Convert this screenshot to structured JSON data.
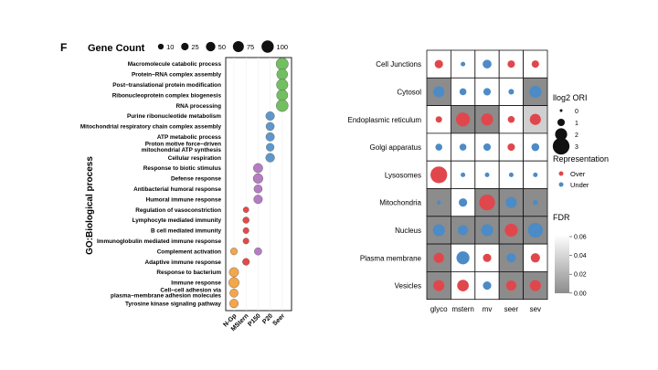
{
  "panel_letter": "F",
  "chart_data": [
    {
      "type": "scatter",
      "title": "",
      "xlabel": "",
      "ylabel": "GO:Biological process",
      "size_legend": {
        "title": "Gene Count",
        "values": [
          10,
          25,
          50,
          75,
          100
        ]
      },
      "categories_x": [
        "N-Gp",
        "MStern",
        "P150",
        "P20",
        "Seer"
      ],
      "categories_y": [
        "Macromolecule catabolic process",
        "Protein−RNA complex assembly",
        "Post−translational protein modification",
        "Ribonucleoprotein complex biogenesis",
        "RNA processing",
        "Purine ribonucleotide metabolism",
        "Mitochondrial respiratory chain complex assembly",
        "ATP metabolic process",
        "Proton motive force−driven mitochondrial ATP synthesis",
        "Cellular respiration",
        "Response to biotic stimulus",
        "Defense response",
        "Antibacterial humoral response",
        "Humoral immune response",
        "Regulation of vasoconstriction",
        "Lymphocyte mediated immunity",
        "B cell mediated immunity",
        "Immunoglobulin mediated immune response",
        "Complement activation",
        "Adaptive immune response",
        "Response to bacterium",
        "Immune response",
        "Cell−cell adhesion via plasma−membrane adhesion molecules",
        "Tyrosine kinase signaling pathway"
      ],
      "points": [
        {
          "x": "Seer",
          "y": "Macromolecule catabolic process",
          "count": 100
        },
        {
          "x": "Seer",
          "y": "Protein−RNA complex assembly",
          "count": 75
        },
        {
          "x": "Seer",
          "y": "Post−translational protein modification",
          "count": 85
        },
        {
          "x": "Seer",
          "y": "Ribonucleoprotein complex biogenesis",
          "count": 80
        },
        {
          "x": "Seer",
          "y": "RNA processing",
          "count": 95
        },
        {
          "x": "P20",
          "y": "Purine ribonucleotide metabolism",
          "count": 40
        },
        {
          "x": "P20",
          "y": "Mitochondrial respiratory chain complex assembly",
          "count": 35
        },
        {
          "x": "P20",
          "y": "ATP metabolic process",
          "count": 38
        },
        {
          "x": "P20",
          "y": "Proton motive force−driven mitochondrial ATP synthesis",
          "count": 30
        },
        {
          "x": "P20",
          "y": "Cellular respiration",
          "count": 42
        },
        {
          "x": "P150",
          "y": "Response to biotic stimulus",
          "count": 50
        },
        {
          "x": "P150",
          "y": "Defense response",
          "count": 55
        },
        {
          "x": "P150",
          "y": "Antibacterial humoral response",
          "count": 35
        },
        {
          "x": "P150",
          "y": "Humoral immune response",
          "count": 40
        },
        {
          "x": "P150",
          "y": "Complement activation",
          "count": 25
        },
        {
          "x": "MStern",
          "y": "Regulation of vasoconstriction",
          "count": 10
        },
        {
          "x": "MStern",
          "y": "Lymphocyte mediated immunity",
          "count": 15
        },
        {
          "x": "MStern",
          "y": "B cell mediated immunity",
          "count": 12
        },
        {
          "x": "MStern",
          "y": "Immunoglobulin mediated immune response",
          "count": 12
        },
        {
          "x": "MStern",
          "y": "Adaptive immune response",
          "count": 20
        },
        {
          "x": "N-Gp",
          "y": "Complement activation",
          "count": 20
        },
        {
          "x": "N-Gp",
          "y": "Response to bacterium",
          "count": 50
        },
        {
          "x": "N-Gp",
          "y": "Immune response",
          "count": 65
        },
        {
          "x": "N-Gp",
          "y": "Cell−cell adhesion via plasma−membrane adhesion molecules",
          "count": 35
        },
        {
          "x": "N-Gp",
          "y": "Tyrosine kinase signaling pathway",
          "count": 40
        }
      ],
      "colors": {
        "N-Gp": "#F3A64A",
        "MStern": "#E34A48",
        "P150": "#B47DC2",
        "P20": "#5E97CC",
        "Seer": "#72BE60"
      }
    },
    {
      "type": "heatmap",
      "title": "",
      "xlabel": "",
      "ylabel": "",
      "categories_x": [
        "glyco",
        "mstern",
        "mv",
        "seer",
        "sev"
      ],
      "categories_y": [
        "Cell Junctions",
        "Cytosol",
        "Endoplasmic reticulum",
        "Golgi apparatus",
        "Lysosomes",
        "Mitochondria",
        "Nucleus",
        "Plasma membrane",
        "Vesicles"
      ],
      "size_legend": {
        "title": "llog2 ORI",
        "values": [
          0,
          1,
          2,
          3
        ]
      },
      "color_legend": {
        "title": "Representation",
        "values": [
          "Over",
          "Under"
        ]
      },
      "fdr_legend": {
        "title": "FDR",
        "ticks": [
          "0.06",
          "0.04",
          "0.02",
          "0.00"
        ],
        "range": [
          0,
          0.06
        ]
      },
      "rep_colors": {
        "Over": "#E0474C",
        "Under": "#4C8BC6"
      },
      "cells": [
        [
          {
            "ori": 1.2,
            "rep": "Over",
            "fdr": 0.06
          },
          {
            "ori": 0.4,
            "rep": "Under",
            "fdr": 0.06
          },
          {
            "ori": 1.3,
            "rep": "Under",
            "fdr": 0.06
          },
          {
            "ori": 1.0,
            "rep": "Over",
            "fdr": 0.06
          },
          {
            "ori": 1.0,
            "rep": "Over",
            "fdr": 0.06
          }
        ],
        [
          {
            "ori": 1.8,
            "rep": "Under",
            "fdr": 0.0
          },
          {
            "ori": 0.9,
            "rep": "Under",
            "fdr": 0.06
          },
          {
            "ori": 1.0,
            "rep": "Under",
            "fdr": 0.06
          },
          {
            "ori": 0.6,
            "rep": "Under",
            "fdr": 0.06
          },
          {
            "ori": 2.0,
            "rep": "Under",
            "fdr": 0.0
          }
        ],
        [
          {
            "ori": 0.8,
            "rep": "Over",
            "fdr": 0.06
          },
          {
            "ori": 2.4,
            "rep": "Over",
            "fdr": 0.0
          },
          {
            "ori": 2.0,
            "rep": "Over",
            "fdr": 0.0
          },
          {
            "ori": 0.9,
            "rep": "Over",
            "fdr": 0.06
          },
          {
            "ori": 1.8,
            "rep": "Over",
            "fdr": 0.035
          }
        ],
        [
          {
            "ori": 0.9,
            "rep": "Under",
            "fdr": 0.06
          },
          {
            "ori": 0.9,
            "rep": "Under",
            "fdr": 0.06
          },
          {
            "ori": 1.0,
            "rep": "Under",
            "fdr": 0.06
          },
          {
            "ori": 1.0,
            "rep": "Over",
            "fdr": 0.06
          },
          {
            "ori": 1.1,
            "rep": "Under",
            "fdr": 0.06
          }
        ],
        [
          {
            "ori": 3.0,
            "rep": "Over",
            "fdr": 0.06
          },
          {
            "ori": 0.4,
            "rep": "Under",
            "fdr": 0.06
          },
          {
            "ori": 0.4,
            "rep": "Under",
            "fdr": 0.06
          },
          {
            "ori": 0.4,
            "rep": "Under",
            "fdr": 0.06
          },
          {
            "ori": 0.4,
            "rep": "Under",
            "fdr": 0.06
          }
        ],
        [
          {
            "ori": 0.3,
            "rep": "Under",
            "fdr": 0.0
          },
          {
            "ori": 1.2,
            "rep": "Under",
            "fdr": 0.06
          },
          {
            "ori": 2.8,
            "rep": "Over",
            "fdr": 0.0
          },
          {
            "ori": 1.8,
            "rep": "Under",
            "fdr": 0.0
          },
          {
            "ori": 0.5,
            "rep": "Under",
            "fdr": 0.0
          }
        ],
        [
          {
            "ori": 2.0,
            "rep": "Under",
            "fdr": 0.0
          },
          {
            "ori": 1.6,
            "rep": "Under",
            "fdr": 0.0
          },
          {
            "ori": 2.0,
            "rep": "Under",
            "fdr": 0.0
          },
          {
            "ori": 2.2,
            "rep": "Over",
            "fdr": 0.0
          },
          {
            "ori": 2.6,
            "rep": "Under",
            "fdr": 0.0
          }
        ],
        [
          {
            "ori": 1.6,
            "rep": "Over",
            "fdr": 0.0
          },
          {
            "ori": 2.2,
            "rep": "Under",
            "fdr": 0.06
          },
          {
            "ori": 1.2,
            "rep": "Over",
            "fdr": 0.06
          },
          {
            "ori": 1.4,
            "rep": "Under",
            "fdr": 0.0
          },
          {
            "ori": 1.4,
            "rep": "Over",
            "fdr": 0.06
          }
        ],
        [
          {
            "ori": 1.8,
            "rep": "Over",
            "fdr": 0.0
          },
          {
            "ori": 1.9,
            "rep": "Over",
            "fdr": 0.06
          },
          {
            "ori": 1.2,
            "rep": "Under",
            "fdr": 0.06
          },
          {
            "ori": 1.6,
            "rep": "Over",
            "fdr": 0.0
          },
          {
            "ori": 1.8,
            "rep": "Over",
            "fdr": 0.0
          }
        ]
      ]
    }
  ]
}
